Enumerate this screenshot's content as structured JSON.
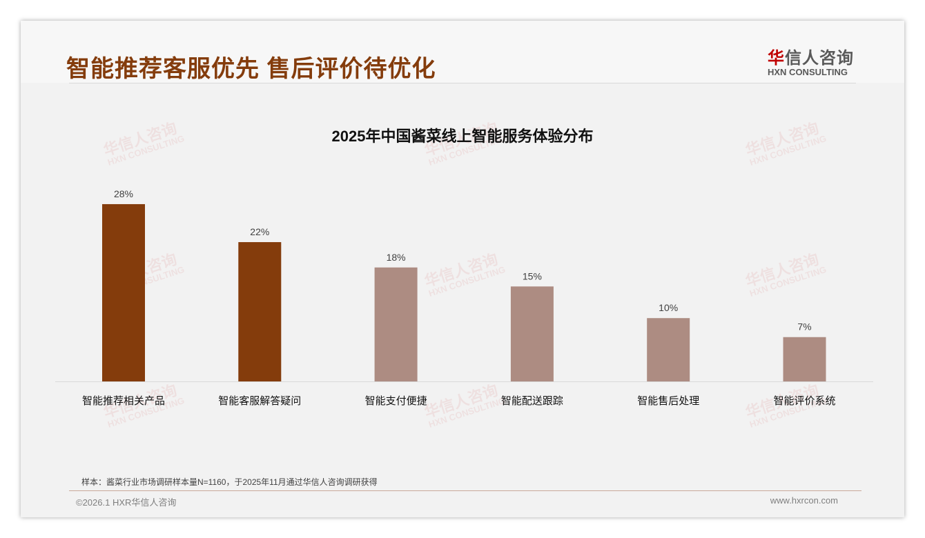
{
  "header": {
    "title": "智能推荐客服优先 售后评价待优化",
    "logo_cn_accent": "华",
    "logo_cn_rest": "信人咨询",
    "logo_en": "HXN CONSULTING"
  },
  "footer": {
    "note": "样本：酱菜行业市场调研样本量N=1160，于2025年11月通过华信人咨询调研获得",
    "copyright": "©2026.1 HXR华信人咨询",
    "url": "www.hxrcon.com"
  },
  "watermark": {
    "cn": "华信人咨询",
    "en": "HXN CONSULTING"
  },
  "colors": {
    "primary": "#843c0c",
    "secondary": "#ad8c82"
  },
  "chart_data": {
    "type": "bar",
    "title": "2025年中国酱菜线上智能服务体验分布",
    "categories": [
      "智能推荐相关产品",
      "智能客服解答疑问",
      "智能支付便捷",
      "智能配送跟踪",
      "智能售后处理",
      "智能评价系统"
    ],
    "values": [
      28,
      22,
      18,
      15,
      10,
      7
    ],
    "labels": [
      "28%",
      "22%",
      "18%",
      "15%",
      "10%",
      "7%"
    ],
    "highlight": [
      true,
      true,
      false,
      false,
      false,
      false
    ],
    "unit": "%",
    "ylim": [
      0,
      30
    ],
    "grid": false,
    "legend": "none"
  }
}
